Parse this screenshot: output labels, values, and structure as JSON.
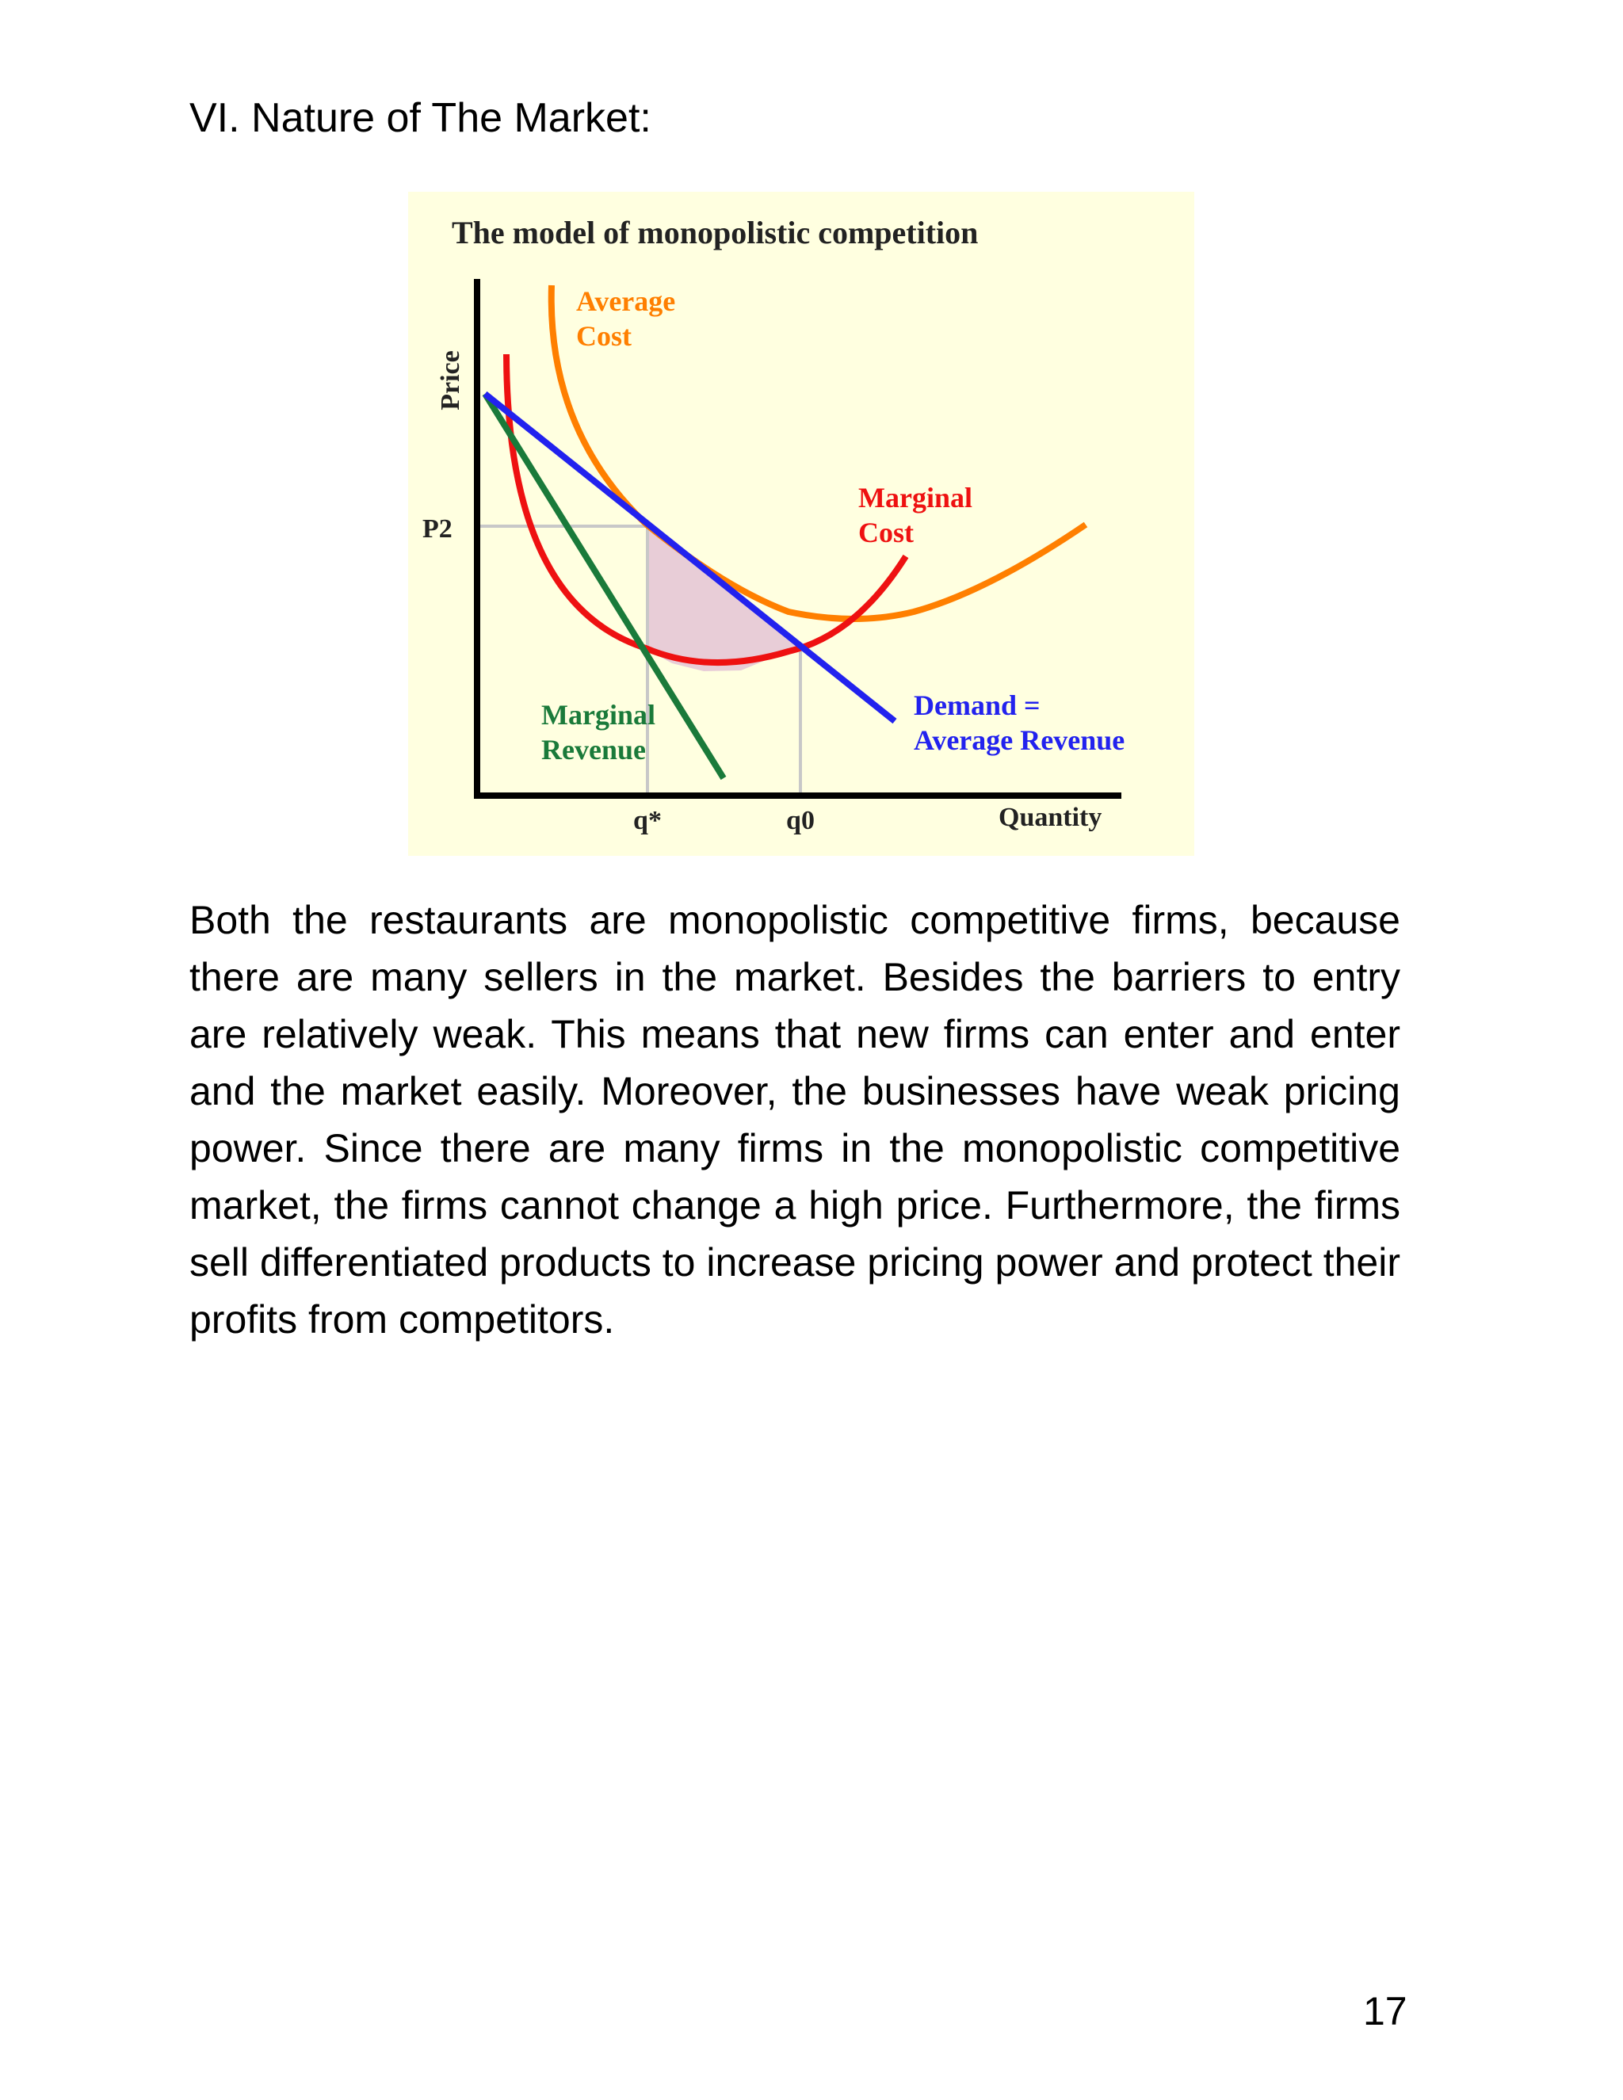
{
  "heading": "VI. Nature of The Market:",
  "figure": {
    "title": "The model of monopolistic competition",
    "y_axis_label": "Price",
    "x_axis_label": "Quantity",
    "price_label": "P2",
    "tick_q_star": "q*",
    "tick_q0": "q0",
    "labels": {
      "average_cost": [
        "Average",
        "Cost"
      ],
      "marginal_cost": [
        "Marginal",
        "Cost"
      ],
      "marginal_revenue": [
        "Marginal",
        "Revenue"
      ],
      "demand": [
        "Demand =",
        "Average Revenue"
      ]
    },
    "colors": {
      "background": "#ffffe0",
      "average_cost": "#ff7f00",
      "marginal_cost": "#ee1111",
      "marginal_revenue": "#1a7a3a",
      "demand": "#2222ee",
      "shaded": "#e6c8d6",
      "guide": "#c8c8c8"
    }
  },
  "paragraph": "Both the restaurants are monopolistic competitive firms, because there are many sellers in the market. Besides the barriers to entry are relatively weak. This means that new firms can enter and enter and the market easily. Moreover, the businesses have weak pricing power. Since there are many firms in the monopolistic competitive market, the firms cannot change a high price. Furthermore, the firms sell differentiated products to increase pricing power and protect their profits from competitors.",
  "page_number": "17"
}
